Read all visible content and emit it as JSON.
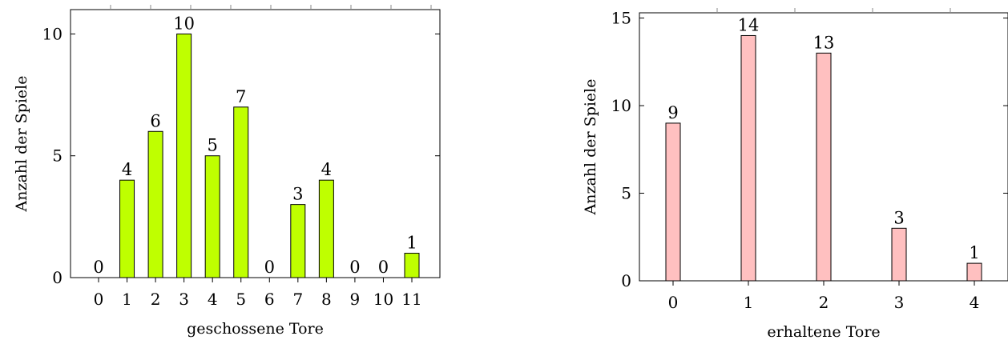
{
  "chart_data": [
    {
      "type": "bar",
      "xlabel": "geschossene Tore",
      "ylabel": "Anzahl der Spiele",
      "categories": [
        "0",
        "1",
        "2",
        "3",
        "4",
        "5",
        "6",
        "7",
        "8",
        "9",
        "10",
        "11"
      ],
      "values": [
        0,
        4,
        6,
        10,
        5,
        7,
        0,
        3,
        4,
        0,
        0,
        1
      ],
      "ylim": [
        0,
        11
      ],
      "yticks": [
        0,
        5,
        10
      ],
      "bar_color": "#bfff00",
      "grid": false
    },
    {
      "type": "bar",
      "xlabel": "erhaltene Tore",
      "ylabel": "Anzahl der Spiele",
      "categories": [
        "0",
        "1",
        "2",
        "3",
        "4"
      ],
      "values": [
        9,
        14,
        13,
        3,
        1
      ],
      "ylim": [
        0,
        15.3
      ],
      "yticks": [
        0,
        5,
        10,
        15
      ],
      "bar_color": "#ffc0c0",
      "grid": false
    }
  ]
}
